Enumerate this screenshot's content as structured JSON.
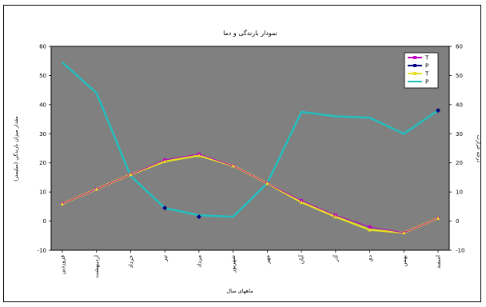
{
  "chart_data": {
    "type": "line",
    "title": "نمودار بارندگی و دما",
    "xlabel": "ماههای سال",
    "ylabel_left": "مقدار ميزان بارندگي (ميليمتر)",
    "ylabel_right": "درجه حرارت",
    "ylim": [
      -10,
      60
    ],
    "yticks": [
      -10,
      0,
      10,
      20,
      30,
      40,
      50,
      60
    ],
    "categories": [
      "فروردين",
      "ارديبهشت",
      "خرداد",
      "تير",
      "مرداد",
      "شهريور",
      "مهر",
      "آبان",
      "آذر",
      "دي",
      "بهمن",
      "اسفند"
    ],
    "series": [
      {
        "name": "T",
        "color": "#c000c0",
        "marker": "square",
        "values": [
          6,
          11,
          16,
          21,
          23,
          19,
          13,
          7,
          2,
          -2,
          -4,
          1
        ]
      },
      {
        "name": "P",
        "color": "#000080",
        "marker": "diamond",
        "values": [
          null,
          null,
          null,
          4.5,
          1.5,
          null,
          null,
          null,
          null,
          null,
          null,
          38
        ]
      },
      {
        "name": "T",
        "color": "#e0e020",
        "marker": "triangle",
        "values": [
          6,
          11,
          16,
          20.5,
          22.5,
          19,
          13,
          6.5,
          1.5,
          -3,
          -4,
          1
        ]
      },
      {
        "name": "P",
        "color": "#20c0c0",
        "marker": "none",
        "values": [
          54.5,
          44,
          15.5,
          4.5,
          2,
          1.5,
          13,
          37.5,
          36,
          35.5,
          30,
          38
        ]
      }
    ],
    "legend": "top-right",
    "plot_background": "#808080",
    "grid": false
  }
}
